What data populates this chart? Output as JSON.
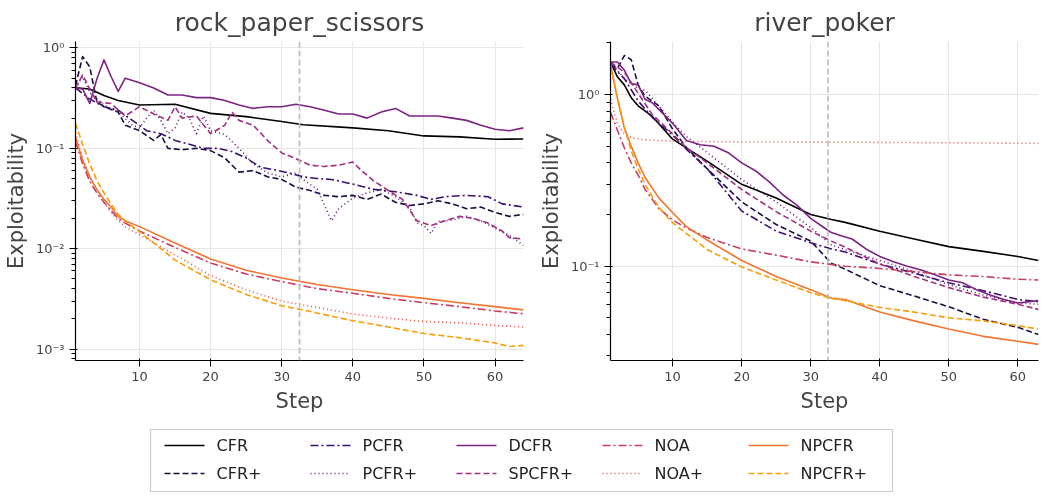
{
  "chart_data": [
    {
      "type": "line",
      "title": "rock_paper_scissors",
      "xlabel": "Step",
      "ylabel": "Exploitability",
      "log": "y",
      "grid": true,
      "legend": "bottom",
      "marker": "none",
      "xlim": [
        1,
        64
      ],
      "xticks": [
        10,
        20,
        30,
        40,
        50,
        60
      ],
      "ylim": [
        0.00077,
        1.16
      ],
      "yticks": [
        {
          "value": 1,
          "label": "10⁰"
        },
        {
          "value": 0.1,
          "label": "10⁻¹"
        },
        {
          "value": 0.01,
          "label": "10⁻²"
        },
        {
          "value": 0.001,
          "label": "10⁻³"
        }
      ],
      "ref_lines": [
        {
          "axis": "x",
          "value": 32.5,
          "color": "#bbbbbb",
          "line_style": "dashed"
        }
      ],
      "series": [
        {
          "name": "CFR",
          "color": "#000000",
          "line_style": "solid",
          "x": [
            1,
            3,
            5,
            7,
            10,
            15,
            20,
            25,
            30,
            33,
            40,
            45,
            50,
            55,
            60,
            64
          ],
          "values": [
            0.4,
            0.39,
            0.336,
            0.3,
            0.27,
            0.275,
            0.223,
            0.207,
            0.185,
            0.172,
            0.16,
            0.15,
            0.133,
            0.13,
            0.123,
            0.124
          ]
        },
        {
          "name": "CFR+",
          "color": "#1a1042",
          "line_style": "dashed",
          "x": [
            1,
            2,
            3,
            4,
            5,
            7,
            8,
            10,
            12,
            13,
            14,
            16,
            18,
            20,
            22,
            24,
            26,
            28,
            30,
            32,
            34,
            36,
            38,
            40,
            42,
            44,
            46,
            48,
            50,
            52,
            54,
            56,
            58,
            60,
            62,
            64
          ],
          "values": [
            0.42,
            0.82,
            0.65,
            0.29,
            0.26,
            0.23,
            0.17,
            0.15,
            0.12,
            0.137,
            0.1,
            0.097,
            0.1,
            0.095,
            0.08,
            0.058,
            0.06,
            0.052,
            0.049,
            0.041,
            0.038,
            0.034,
            0.033,
            0.034,
            0.031,
            0.035,
            0.029,
            0.027,
            0.028,
            0.03,
            0.028,
            0.025,
            0.026,
            0.023,
            0.021,
            0.022
          ]
        },
        {
          "name": "PCFR",
          "color": "#3b0f70",
          "line_style": "dashdot",
          "x": [
            1,
            3,
            5,
            7,
            9,
            11,
            13,
            15,
            17,
            19,
            21,
            23,
            25,
            27,
            29,
            31,
            33,
            35,
            37,
            40,
            43,
            46,
            49,
            51,
            53,
            56,
            59,
            61,
            64
          ],
          "values": [
            0.4,
            0.31,
            0.26,
            0.24,
            0.19,
            0.15,
            0.14,
            0.12,
            0.11,
            0.1,
            0.1,
            0.093,
            0.08,
            0.065,
            0.061,
            0.057,
            0.052,
            0.05,
            0.049,
            0.044,
            0.039,
            0.037,
            0.034,
            0.031,
            0.033,
            0.034,
            0.033,
            0.028,
            0.026
          ]
        },
        {
          "name": "PCFR+",
          "color": "#5c157e",
          "line_style": "dotted",
          "x": [
            1,
            2,
            3,
            5,
            7,
            9,
            10,
            11,
            12,
            13,
            14,
            15,
            16,
            17,
            18,
            19,
            20,
            22,
            24,
            26,
            28,
            30,
            32,
            33,
            35,
            37,
            38,
            40,
            42,
            44,
            46,
            48,
            49,
            50,
            51,
            52,
            54,
            56,
            58,
            60,
            62,
            64
          ],
          "values": [
            0.4,
            0.52,
            0.36,
            0.27,
            0.23,
            0.17,
            0.16,
            0.2,
            0.24,
            0.19,
            0.14,
            0.16,
            0.23,
            0.2,
            0.14,
            0.21,
            0.15,
            0.137,
            0.1,
            0.07,
            0.057,
            0.052,
            0.057,
            0.049,
            0.039,
            0.019,
            0.025,
            0.032,
            0.036,
            0.039,
            0.033,
            0.026,
            0.018,
            0.017,
            0.0142,
            0.0187,
            0.0193,
            0.021,
            0.019,
            0.016,
            0.0136,
            0.0108
          ]
        },
        {
          "name": "DCFR",
          "color": "#7b2382",
          "line_style": "solid",
          "x": [
            1,
            2,
            3,
            4,
            5,
            6,
            7,
            8,
            10,
            12,
            14,
            16,
            18,
            20,
            22,
            24,
            26,
            28,
            30,
            32,
            34,
            36,
            38,
            40,
            42,
            44,
            46,
            48,
            50,
            52,
            54,
            56,
            58,
            60,
            62,
            64
          ],
          "values": [
            0.4,
            0.39,
            0.28,
            0.49,
            0.76,
            0.52,
            0.37,
            0.5,
            0.45,
            0.4,
            0.34,
            0.34,
            0.32,
            0.32,
            0.3,
            0.27,
            0.25,
            0.26,
            0.26,
            0.275,
            0.26,
            0.24,
            0.22,
            0.22,
            0.2,
            0.23,
            0.25,
            0.21,
            0.21,
            0.21,
            0.2,
            0.19,
            0.17,
            0.155,
            0.15,
            0.16
          ]
        },
        {
          "name": "SPCFR+",
          "color": "#a3307e",
          "line_style": "dashed",
          "x": [
            1,
            2,
            3,
            4,
            6,
            8,
            10,
            12,
            14,
            15,
            16,
            18,
            20,
            22,
            23,
            24,
            26,
            28,
            30,
            32,
            34,
            36,
            38,
            40,
            41,
            43,
            45,
            47,
            49,
            51,
            53,
            55,
            57,
            59,
            61,
            62,
            64
          ],
          "values": [
            0.4,
            0.54,
            0.39,
            0.29,
            0.28,
            0.21,
            0.26,
            0.22,
            0.19,
            0.26,
            0.2,
            0.21,
            0.14,
            0.17,
            0.23,
            0.19,
            0.17,
            0.12,
            0.09,
            0.079,
            0.068,
            0.066,
            0.068,
            0.073,
            0.062,
            0.047,
            0.038,
            0.031,
            0.019,
            0.017,
            0.019,
            0.021,
            0.02,
            0.018,
            0.015,
            0.0129,
            0.0125
          ]
        },
        {
          "name": "NOA",
          "color": "#c73e5f",
          "line_style": "dashdot",
          "x": [
            1,
            2,
            3,
            4,
            5,
            6,
            7,
            8,
            10,
            15,
            20,
            25,
            30,
            35,
            40,
            45,
            50,
            55,
            60,
            64
          ],
          "values": [
            0.118,
            0.07,
            0.047,
            0.036,
            0.029,
            0.024,
            0.02,
            0.018,
            0.015,
            0.0103,
            0.0072,
            0.0056,
            0.0047,
            0.004,
            0.0036,
            0.0032,
            0.0029,
            0.00265,
            0.0024,
            0.00225
          ]
        },
        {
          "name": "NOA+",
          "color": "#ed504a",
          "line_style": "dotted",
          "x": [
            1,
            2,
            3,
            4,
            5,
            6,
            7,
            8,
            10,
            15,
            20,
            25,
            30,
            33,
            40,
            45,
            50,
            55,
            60,
            64
          ],
          "values": [
            0.143,
            0.08,
            0.052,
            0.038,
            0.029,
            0.023,
            0.019,
            0.0165,
            0.0138,
            0.0087,
            0.0054,
            0.0039,
            0.003,
            0.00275,
            0.00224,
            0.00204,
            0.00188,
            0.00183,
            0.00172,
            0.00166
          ]
        },
        {
          "name": "NPCFR",
          "color": "#f37430",
          "line_style": "solid",
          "x": [
            1,
            2,
            3,
            4,
            5,
            6,
            7,
            8,
            10,
            15,
            20,
            25,
            30,
            35,
            40,
            45,
            50,
            55,
            60,
            64
          ],
          "values": [
            0.128,
            0.076,
            0.052,
            0.039,
            0.031,
            0.026,
            0.021,
            0.019,
            0.0166,
            0.0114,
            0.0079,
            0.0061,
            0.0051,
            0.0044,
            0.0039,
            0.0035,
            0.0032,
            0.0029,
            0.00265,
            0.00246
          ]
        },
        {
          "name": "NPCFR+",
          "color": "#fb9b06",
          "line_style": "dashed",
          "x": [
            1,
            2,
            3,
            4,
            5,
            6,
            7,
            8,
            10,
            15,
            20,
            25,
            30,
            33,
            40,
            45,
            50,
            55,
            60,
            62,
            64
          ],
          "values": [
            0.178,
            0.11,
            0.07,
            0.048,
            0.036,
            0.028,
            0.022,
            0.019,
            0.0148,
            0.0077,
            0.0049,
            0.0035,
            0.0027,
            0.00245,
            0.00192,
            0.00166,
            0.00143,
            0.0013,
            0.00115,
            0.00106,
            0.00109
          ]
        }
      ]
    },
    {
      "type": "line",
      "title": "river_poker",
      "xlabel": "Step",
      "ylabel": "Exploitability",
      "log": "y",
      "grid": true,
      "marker": "none",
      "xlim": [
        1,
        63
      ],
      "xticks": [
        10,
        20,
        30,
        40,
        50,
        60
      ],
      "ylim": [
        0.0282,
        2.04
      ],
      "yticks": [
        {
          "value": 1,
          "label": "10⁰"
        },
        {
          "value": 0.1,
          "label": "10⁻¹"
        }
      ],
      "ref_lines": [
        {
          "axis": "x",
          "value": 32.5,
          "color": "#bbbbbb",
          "line_style": "dashed"
        }
      ],
      "series": [
        {
          "color": "#000000",
          "line_style": "solid",
          "x": [
            1,
            2,
            3,
            4,
            5,
            7,
            10,
            15,
            20,
            25,
            30,
            33,
            35,
            40,
            45,
            50,
            55,
            60,
            63
          ],
          "values": [
            1.55,
            1.27,
            1.14,
            0.96,
            0.86,
            0.75,
            0.55,
            0.41,
            0.3,
            0.25,
            0.2,
            0.187,
            0.18,
            0.16,
            0.144,
            0.13,
            0.122,
            0.114,
            0.108
          ]
        },
        {
          "color": "#1a1042",
          "line_style": "dashed",
          "x": [
            1,
            2,
            3,
            4,
            5,
            6,
            8,
            10,
            12,
            15,
            20,
            25,
            30,
            33,
            35,
            40,
            45,
            50,
            55,
            60,
            63
          ],
          "values": [
            1.5,
            1.42,
            1.69,
            1.6,
            1.14,
            0.98,
            0.86,
            0.63,
            0.49,
            0.37,
            0.237,
            0.175,
            0.14,
            0.104,
            0.096,
            0.077,
            0.067,
            0.058,
            0.049,
            0.044,
            0.04
          ]
        },
        {
          "color": "#3b0f70",
          "line_style": "dashdot",
          "x": [
            1,
            3,
            5,
            7,
            10,
            12,
            15,
            20,
            25,
            30,
            33,
            35,
            40,
            45,
            50,
            55,
            60,
            63
          ],
          "values": [
            1.5,
            1.24,
            0.92,
            0.74,
            0.58,
            0.48,
            0.37,
            0.21,
            0.16,
            0.137,
            0.126,
            0.121,
            0.103,
            0.091,
            0.08,
            0.072,
            0.064,
            0.062
          ]
        },
        {
          "color": "#5c157e",
          "line_style": "dotted",
          "x": [
            1,
            3,
            4,
            5,
            6,
            8,
            10,
            12,
            15,
            20,
            25,
            30,
            33,
            35,
            40,
            45,
            50,
            55,
            60,
            63
          ],
          "values": [
            1.55,
            1.24,
            1.16,
            1.09,
            1.06,
            0.86,
            0.69,
            0.57,
            0.46,
            0.32,
            0.237,
            0.168,
            0.133,
            0.125,
            0.108,
            0.093,
            0.078,
            0.068,
            0.061,
            0.06
          ]
        },
        {
          "color": "#7b2382",
          "line_style": "solid",
          "x": [
            1,
            2,
            3,
            4,
            5,
            6,
            7,
            8,
            10,
            12,
            14,
            16,
            18,
            20,
            22,
            24,
            26,
            28,
            30,
            32,
            33,
            35,
            36,
            38,
            40,
            42,
            44,
            46,
            48,
            50,
            52,
            54,
            56,
            58,
            60,
            63
          ],
          "values": [
            1.55,
            1.55,
            1.39,
            1.16,
            1.14,
            0.94,
            0.9,
            0.82,
            0.68,
            0.54,
            0.51,
            0.5,
            0.46,
            0.4,
            0.36,
            0.31,
            0.26,
            0.227,
            0.19,
            0.167,
            0.157,
            0.148,
            0.144,
            0.126,
            0.114,
            0.106,
            0.1,
            0.095,
            0.089,
            0.083,
            0.08,
            0.073,
            0.068,
            0.064,
            0.061,
            0.063
          ]
        },
        {
          "color": "#a3307e",
          "line_style": "dashed",
          "x": [
            1,
            3,
            5,
            7,
            10,
            12,
            15,
            20,
            25,
            30,
            33,
            35,
            40,
            45,
            50,
            55,
            60,
            63
          ],
          "values": [
            1.55,
            1.35,
            1.02,
            0.77,
            0.59,
            0.49,
            0.4,
            0.28,
            0.208,
            0.16,
            0.14,
            0.129,
            0.103,
            0.087,
            0.075,
            0.066,
            0.06,
            0.056
          ]
        },
        {
          "color": "#c73e5f",
          "line_style": "dashdot",
          "x": [
            1,
            2,
            3,
            4,
            5,
            6,
            8,
            10,
            12,
            15,
            20,
            25,
            30,
            35,
            40,
            45,
            50,
            55,
            60,
            63
          ],
          "values": [
            0.79,
            0.62,
            0.49,
            0.4,
            0.34,
            0.28,
            0.217,
            0.186,
            0.167,
            0.147,
            0.126,
            0.116,
            0.106,
            0.1,
            0.097,
            0.093,
            0.089,
            0.087,
            0.084,
            0.083
          ]
        },
        {
          "color": "#ed504a",
          "line_style": "dotted",
          "x": [
            1,
            2,
            3,
            4,
            6,
            10,
            20,
            40,
            63
          ],
          "values": [
            0.94,
            0.68,
            0.59,
            0.56,
            0.545,
            0.535,
            0.53,
            0.527,
            0.52
          ]
        },
        {
          "color": "#f37430",
          "line_style": "solid",
          "x": [
            1,
            2,
            3,
            4,
            5,
            6,
            8,
            10,
            12,
            15,
            20,
            25,
            30,
            33,
            35,
            40,
            45,
            50,
            55,
            60,
            63
          ],
          "values": [
            1.5,
            0.95,
            0.64,
            0.5,
            0.4,
            0.33,
            0.25,
            0.205,
            0.17,
            0.142,
            0.108,
            0.087,
            0.073,
            0.065,
            0.064,
            0.054,
            0.048,
            0.043,
            0.039,
            0.0365,
            0.035
          ]
        },
        {
          "color": "#fb9b06",
          "line_style": "dashed",
          "x": [
            1,
            2,
            3,
            4,
            5,
            6,
            8,
            10,
            12,
            15,
            20,
            25,
            30,
            33,
            35,
            40,
            45,
            50,
            55,
            60,
            63
          ],
          "values": [
            1.5,
            0.96,
            0.65,
            0.47,
            0.37,
            0.3,
            0.22,
            0.179,
            0.155,
            0.125,
            0.099,
            0.083,
            0.07,
            0.065,
            0.063,
            0.0575,
            0.054,
            0.05,
            0.048,
            0.045,
            0.043
          ]
        }
      ]
    }
  ]
}
